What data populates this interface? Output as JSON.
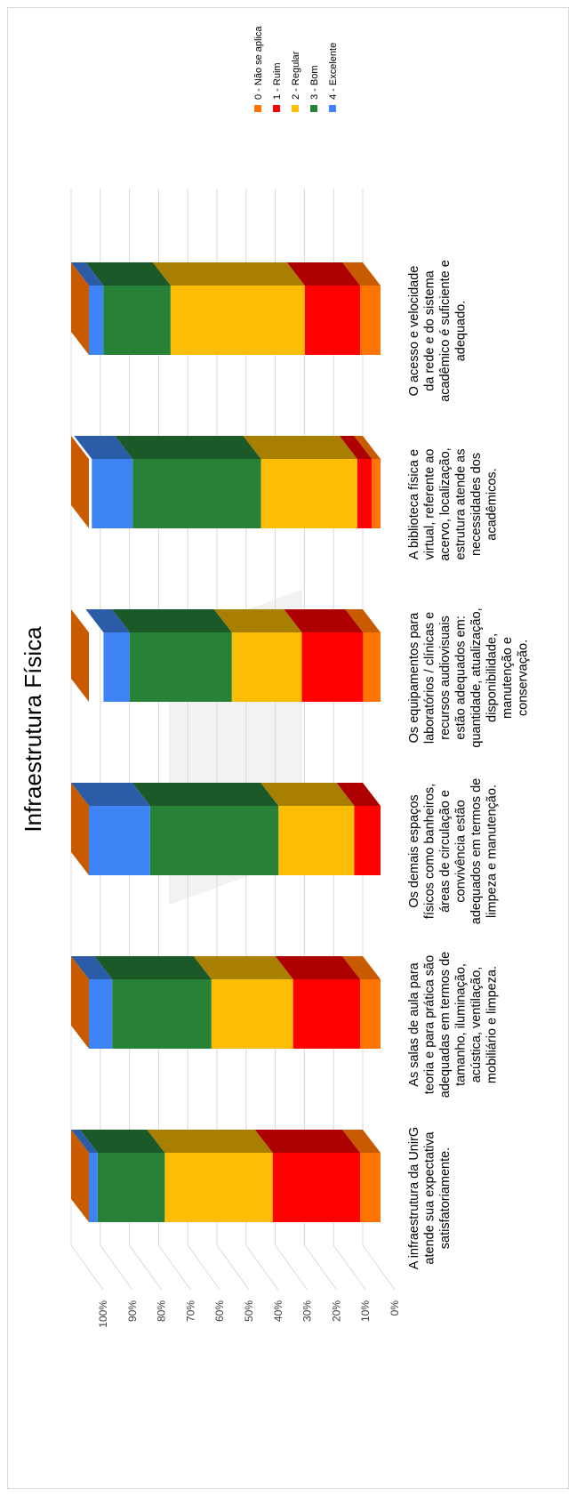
{
  "chart_data": {
    "type": "bar",
    "stacked": "100%",
    "three_d": true,
    "title": "Infraestrutura Física",
    "categories": [
      "A infraestrutura da UnirG atende sua expectativa satisfatoriamente.",
      "As salas de aula para teoria e para prática são adequadas em termos de tamanho, iluminação, acústica, ventilação, mobiliário e limpeza.",
      "Os demais espaços físicos como banheiros, áreas de circulação e convivência estão adequados em termos de limpeza e manutenção.",
      "Os equipamentos para laboratórios / clínicas e recursos audiovisuais estão adequados em: quantidade, atualização, disponibilidade, manutenção e conservação.",
      "A biblioteca física e virtual, referente ao acervo, localização, estrutura atende as necessidades dos acadêmicos.",
      "O acesso e velocidade da rede e do sistema acadêmico é suficiente e adequado."
    ],
    "category_lines": [
      [
        "A infraestrutura da UnirG",
        "atende sua expectativa",
        "satisfatoriamente."
      ],
      [
        "As salas de aula para",
        "teoria e para prática são",
        "adequadas em termos de",
        "tamanho, iluminação,",
        "acústica, ventilação,",
        "mobiliário e limpeza."
      ],
      [
        "Os demais espaços",
        "físicos como banheiros,",
        "áreas de circulação e",
        "convivência estão",
        "adequados em termos de",
        "limpeza e manutenção."
      ],
      [
        "Os equipamentos para",
        "laboratórios / clínicas e",
        "recursos audiovisuais",
        "estão adequados em:",
        "quantidade, atualização,",
        "disponibilidade,",
        "manutenção e",
        "conservação."
      ],
      [
        "A biblioteca física e",
        "virtual, referente ao",
        "acervo, localização,",
        "estrutura atende as",
        "necessidades dos",
        "acadêmicos."
      ],
      [
        "O acesso e velocidade",
        "da rede e do sistema",
        "acadêmico é suficiente e",
        "adequado."
      ]
    ],
    "series": [
      {
        "name": "0 - Não se aplica",
        "values": [
          7,
          7,
          0,
          6,
          3,
          7
        ]
      },
      {
        "name": "1 - Ruim",
        "values": [
          30,
          23,
          9,
          21,
          5,
          19
        ]
      },
      {
        "name": "2 - Regular",
        "values": [
          37,
          28,
          26,
          24,
          33,
          46
        ]
      },
      {
        "name": "3 - Bom",
        "values": [
          23,
          34,
          44,
          35,
          44,
          23
        ]
      },
      {
        "name": "4 - Excelente",
        "values": [
          3,
          8,
          21,
          9,
          14,
          5
        ]
      }
    ],
    "colors": [
      "#fe7400",
      "#fe0000",
      "#fcbd04",
      "#278237",
      "#3e84f4"
    ],
    "top_colors": [
      "#c85b00",
      "#ad0000",
      "#a97f02",
      "#1b5928",
      "#2b5ca8"
    ],
    "value_axis": {
      "ticks": [
        "0%",
        "10%",
        "20%",
        "30%",
        "40%",
        "50%",
        "60%",
        "70%",
        "80%",
        "90%",
        "100%"
      ],
      "range": [
        0,
        100
      ],
      "grid": true
    },
    "legend_position": "top-right",
    "orientation": "rotated 90° counter-clockwise"
  }
}
